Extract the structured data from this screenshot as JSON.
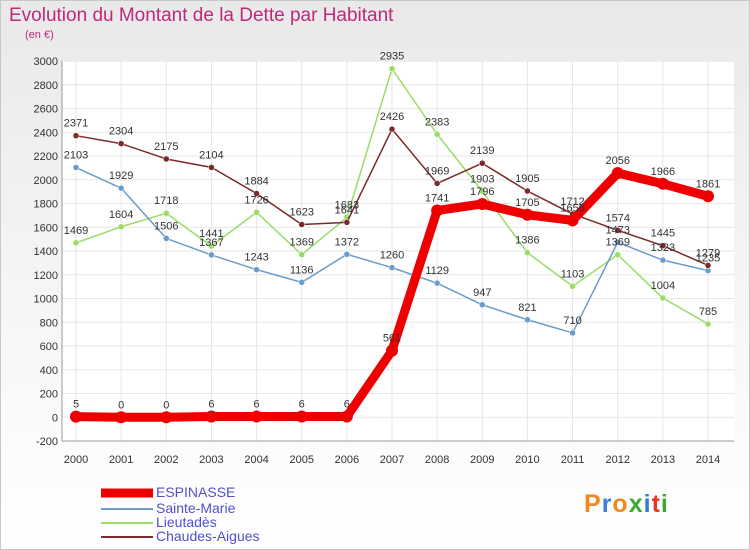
{
  "title": "Evolution du Montant de la Dette par Habitant",
  "subtitle": "(en €)",
  "logo": {
    "text": "Proxiti",
    "colors": [
      "#f08a1c",
      "#3a7fd5",
      "#f08a1c",
      "#3aaa35",
      "#2e7dd1",
      "#e8332a",
      "#3aaa35"
    ]
  },
  "chart_data": {
    "type": "line",
    "title": "Evolution du Montant de la Dette par Habitant",
    "ylabel": "(en €)",
    "x": [
      "2000",
      "2001",
      "2002",
      "2003",
      "2004",
      "2005",
      "2006",
      "2007",
      "2008",
      "2009",
      "2010",
      "2011",
      "2012",
      "2013",
      "2014"
    ],
    "ylim": [
      -200,
      3000
    ],
    "yticks": [
      -200,
      0,
      200,
      400,
      600,
      800,
      1000,
      1200,
      1400,
      1600,
      1800,
      2000,
      2200,
      2400,
      2600,
      2800,
      3000
    ],
    "grid": true,
    "legend": "bottom-left",
    "series": [
      {
        "name": "ESPINASSE",
        "color": "#ee0000",
        "width": 9,
        "values": [
          5,
          0,
          0,
          6,
          6,
          6,
          6,
          561,
          1741,
          1796,
          1705,
          1658,
          2056,
          1966,
          1861
        ],
        "labels": [
          "5",
          "0",
          "0",
          "6",
          "6",
          "6",
          "6",
          "561",
          "1741",
          "1796",
          "1705",
          "1658",
          "2056",
          "1966",
          "1861"
        ]
      },
      {
        "name": "Sainte-Marie",
        "color": "#6a9ccc",
        "width": 1.5,
        "values": [
          2103,
          1929,
          1506,
          1367,
          1243,
          1136,
          1372,
          1260,
          1129,
          947,
          821,
          710,
          1473,
          1323,
          1235
        ],
        "labels": [
          "2103",
          "1929",
          "1506",
          "1367",
          "1243",
          "1136",
          "1372",
          "1260",
          "1129",
          "947",
          "821",
          "710",
          "1473",
          "1323",
          "1235"
        ]
      },
      {
        "name": "Lieutadès",
        "color": "#99dd66",
        "width": 1.5,
        "values": [
          1469,
          1604,
          1718,
          1441,
          1726,
          1369,
          1683,
          2935,
          2383,
          1903,
          1386,
          1103,
          1369,
          1004,
          785
        ],
        "labels": [
          "1469",
          "1604",
          "1718",
          "1441",
          "1726",
          "1369",
          "1683",
          "2935",
          "2383",
          "1903",
          "1386",
          "1103",
          "1369",
          "1004",
          "785"
        ]
      },
      {
        "name": "Chaudes-Aigues",
        "color": "#7a2a2a",
        "width": 1.5,
        "values": [
          2371,
          2304,
          2175,
          2104,
          1884,
          1623,
          1641,
          2426,
          1969,
          2139,
          1905,
          1712,
          1574,
          1445,
          1279
        ],
        "labels": [
          "2371",
          "2304",
          "2175",
          "2104",
          "1884",
          "1623",
          "1641",
          "2426",
          "1969",
          "2139",
          "1905",
          "1712",
          "1574",
          "1445",
          "1279"
        ]
      }
    ]
  }
}
